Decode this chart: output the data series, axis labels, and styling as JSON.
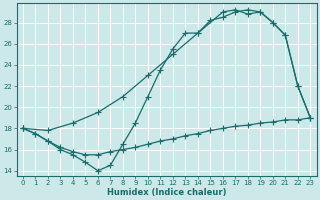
{
  "xlabel": "Humidex (Indice chaleur)",
  "bg_color": "#cce8e8",
  "grid_color": "#ffffff",
  "line_color": "#1a6b6b",
  "xlim_min": -0.5,
  "xlim_max": 23.5,
  "ylim_min": 13.5,
  "ylim_max": 29.8,
  "yticks": [
    14,
    16,
    18,
    20,
    22,
    24,
    26,
    28
  ],
  "xticks": [
    0,
    1,
    2,
    3,
    4,
    5,
    6,
    7,
    8,
    9,
    10,
    11,
    12,
    13,
    14,
    15,
    16,
    17,
    18,
    19,
    20,
    21,
    22,
    23
  ],
  "line1_x": [
    0,
    1,
    2,
    3,
    4,
    5,
    6,
    7,
    8,
    9,
    10,
    11,
    12,
    13,
    14,
    15,
    16,
    17,
    18,
    19,
    20,
    21,
    22,
    23
  ],
  "line1_y": [
    18.0,
    17.5,
    16.8,
    16.0,
    15.5,
    14.8,
    14.0,
    14.5,
    16.5,
    18.5,
    21.0,
    23.5,
    25.5,
    27.0,
    27.0,
    28.2,
    28.5,
    29.0,
    29.2,
    29.0,
    28.0,
    26.8,
    22.0,
    19.0
  ],
  "line2_x": [
    0,
    2,
    4,
    6,
    8,
    10,
    12,
    14,
    16,
    17,
    18,
    19,
    20,
    21,
    22,
    23
  ],
  "line2_y": [
    18.0,
    17.8,
    18.5,
    19.5,
    21.0,
    23.0,
    25.0,
    27.0,
    29.0,
    29.2,
    28.8,
    29.0,
    28.0,
    26.8,
    22.0,
    19.0
  ],
  "line3_x": [
    0,
    1,
    2,
    3,
    4,
    5,
    6,
    7,
    8,
    9,
    10,
    11,
    12,
    13,
    14,
    15,
    16,
    17,
    18,
    19,
    20,
    21,
    22,
    23
  ],
  "line3_y": [
    18.0,
    17.5,
    16.8,
    16.2,
    15.8,
    15.5,
    15.5,
    15.8,
    16.0,
    16.2,
    16.5,
    16.8,
    17.0,
    17.3,
    17.5,
    17.8,
    18.0,
    18.2,
    18.3,
    18.5,
    18.6,
    18.8,
    18.8,
    19.0
  ]
}
